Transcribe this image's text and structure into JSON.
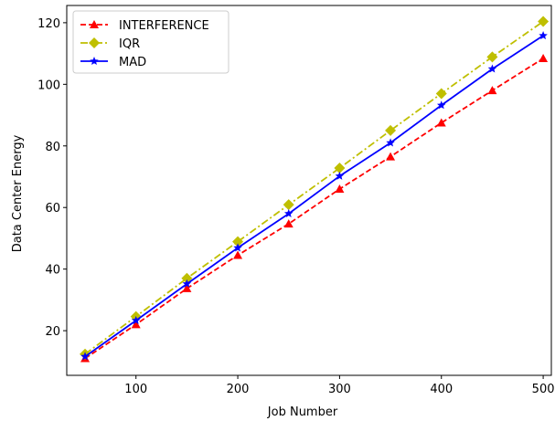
{
  "chart_data": {
    "type": "line",
    "xlabel": "Job Number",
    "ylabel": "Data Center Energy",
    "xlim": [
      32,
      508
    ],
    "ylim": [
      5.5,
      125.6
    ],
    "xticks": [
      100,
      200,
      300,
      400,
      500
    ],
    "yticks": [
      20,
      40,
      60,
      80,
      100,
      120
    ],
    "xtick_labels": [
      "100",
      "200",
      "300",
      "400",
      "500"
    ],
    "ytick_labels": [
      "20",
      "40",
      "60",
      "80",
      "100",
      "120"
    ],
    "grid": false,
    "legend_position": "top-left",
    "x": [
      50,
      100,
      150,
      200,
      250,
      300,
      350,
      400,
      450,
      500
    ],
    "series": [
      {
        "name": "INTERFERENCE",
        "color": "#ff0000",
        "dash": "dashed",
        "marker": "triangle",
        "values": [
          11.0,
          22.0,
          33.7,
          44.5,
          54.7,
          66.0,
          76.5,
          87.5,
          98.0,
          108.4
        ]
      },
      {
        "name": "IQR",
        "color": "#bfbf00",
        "dash": "dashdot",
        "marker": "diamond",
        "values": [
          12.4,
          24.6,
          37.0,
          48.9,
          60.9,
          72.8,
          85.0,
          97.0,
          108.9,
          120.4
        ]
      },
      {
        "name": "MAD",
        "color": "#0000ff",
        "dash": "solid",
        "marker": "star",
        "values": [
          11.6,
          23.3,
          35.2,
          46.9,
          58.0,
          70.2,
          81.0,
          93.2,
          105.0,
          115.8
        ]
      }
    ]
  }
}
